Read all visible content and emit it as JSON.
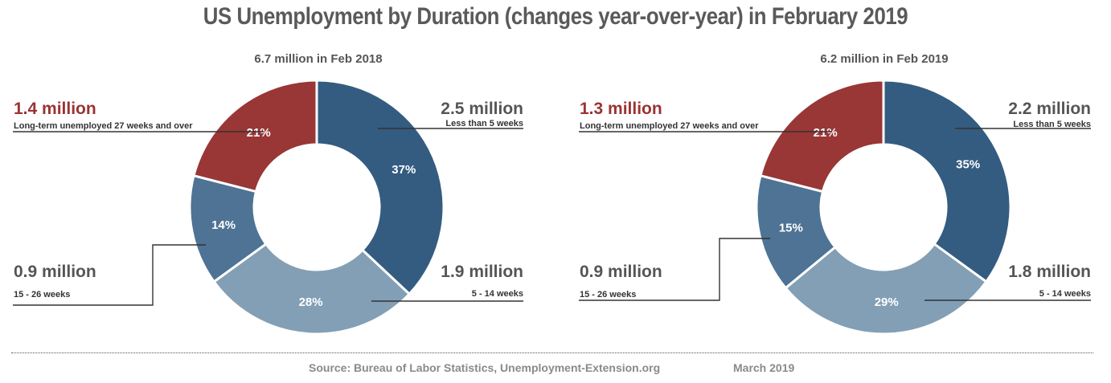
{
  "title": "US Unemployment by Duration (changes year-over-year) in February 2019",
  "footer": {
    "source": "Source: Bureau of Labor Statistics, Unemployment-Extension.org",
    "date": "March 2019"
  },
  "colors": {
    "dark_blue": "#345c80",
    "mid_blue": "#4e7394",
    "light_blue": "#839fb5",
    "red": "#993636",
    "red_text": "#993333"
  },
  "chart_data": [
    {
      "type": "pie",
      "subtitle": "6.7 million in Feb 2018",
      "slices": [
        {
          "key": "lt5",
          "label": "Less than 5 weeks",
          "amount": "2.5 million",
          "percent": 37,
          "pct_label": "37%",
          "color": "#345c80"
        },
        {
          "key": "w5_14",
          "label": "5 - 14 weeks",
          "amount": "1.9 million",
          "percent": 28,
          "pct_label": "28%",
          "color": "#839fb5"
        },
        {
          "key": "w15_26",
          "label": "15 - 26 weeks",
          "amount": "0.9 million",
          "percent": 14,
          "pct_label": "14%",
          "color": "#4e7394"
        },
        {
          "key": "w27",
          "label": "Long-term unemployed 27 weeks and over",
          "amount": "1.4 million",
          "percent": 21,
          "pct_label": "21%",
          "color": "#993636"
        }
      ]
    },
    {
      "type": "pie",
      "subtitle": "6.2 million in Feb 2019",
      "slices": [
        {
          "key": "lt5",
          "label": "Less than 5 weeks",
          "amount": "2.2 million",
          "percent": 35,
          "pct_label": "35%",
          "color": "#345c80"
        },
        {
          "key": "w5_14",
          "label": "5 - 14 weeks",
          "amount": "1.8 million",
          "percent": 29,
          "pct_label": "29%",
          "color": "#839fb5"
        },
        {
          "key": "w15_26",
          "label": "15 - 26 weeks",
          "amount": "0.9 million",
          "percent": 15,
          "pct_label": "15%",
          "color": "#4e7394"
        },
        {
          "key": "w27",
          "label": "Long-term unemployed 27 weeks and over",
          "amount": "1.3 million",
          "percent": 21,
          "pct_label": "21%",
          "color": "#993636"
        }
      ]
    }
  ]
}
